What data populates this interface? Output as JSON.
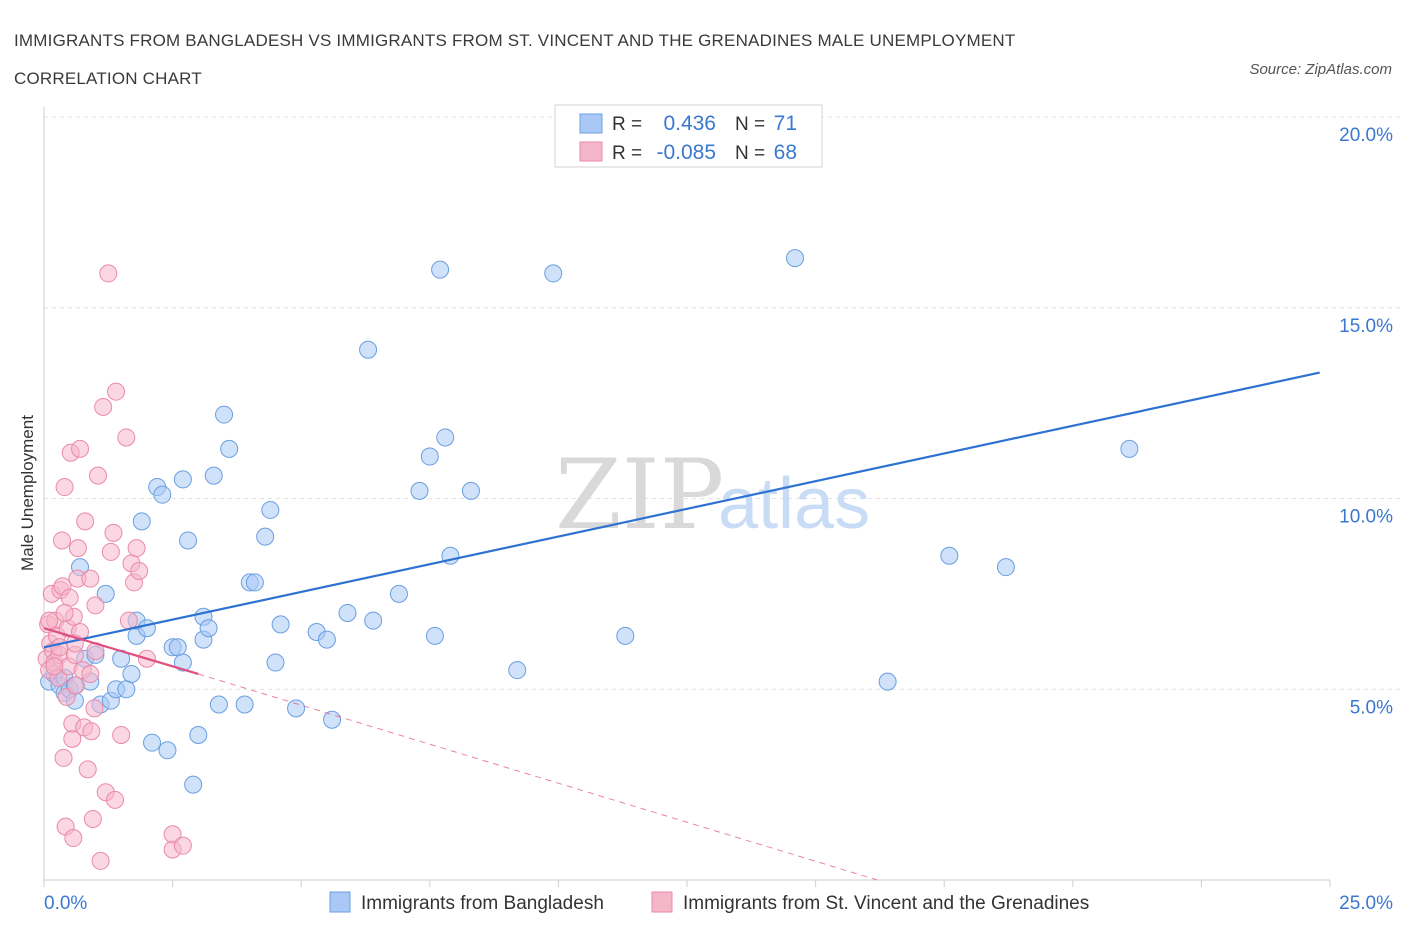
{
  "header": {
    "title_line1": "IMMIGRANTS FROM BANGLADESH VS IMMIGRANTS FROM ST. VINCENT AND THE GRENADINES MALE UNEMPLOYMENT",
    "title_line2": "CORRELATION CHART",
    "source": "Source: ZipAtlas.com"
  },
  "watermark": {
    "zip": "ZIP",
    "atlas": "atlas"
  },
  "colors": {
    "blue": "#a9c8f5",
    "blue_stroke": "#6a9fe0",
    "blue_line": "#2e72d2",
    "pink": "#f6b6ca",
    "pink_stroke": "#ea8aa9",
    "pink_line": "#e0507e",
    "axis_text": "#3a78d0"
  },
  "chart_data": {
    "type": "scatter",
    "title": "Immigrants from Bangladesh vs Immigrants from St. Vincent and the Grenadines Male Unemployment Correlation Chart",
    "xlabel": "",
    "ylabel": "Male Unemployment",
    "xlim": [
      0,
      25
    ],
    "ylim": [
      0,
      20
    ],
    "x_tick_labels": [
      "0.0%",
      "25.0%"
    ],
    "y_ticks": [
      5,
      10,
      15,
      20
    ],
    "y_tick_labels": [
      "5.0%",
      "10.0%",
      "15.0%",
      "20.0%"
    ],
    "grid": true,
    "legend": {
      "stats": [
        {
          "r_label": "R =",
          "r_value": "0.436",
          "n_label": "N =",
          "n_value": "71"
        },
        {
          "r_label": "R =",
          "r_value": "-0.085",
          "n_label": "N =",
          "n_value": "68"
        }
      ],
      "bottom": [
        "Immigrants from Bangladesh",
        "Immigrants from St. Vincent and the Grenadines"
      ]
    },
    "series": [
      {
        "name": "Immigrants from Bangladesh",
        "color": "#a9c8f5",
        "trend": {
          "x": [
            0,
            24.8
          ],
          "y": [
            6.1,
            13.3
          ]
        },
        "points": [
          [
            0.1,
            5.2
          ],
          [
            0.2,
            5.4
          ],
          [
            0.3,
            5.1
          ],
          [
            0.4,
            5.3
          ],
          [
            0.4,
            4.9
          ],
          [
            0.5,
            5.0
          ],
          [
            0.6,
            4.7
          ],
          [
            0.7,
            8.2
          ],
          [
            0.8,
            5.8
          ],
          [
            0.9,
            5.2
          ],
          [
            1.0,
            5.9
          ],
          [
            1.1,
            4.6
          ],
          [
            1.2,
            7.5
          ],
          [
            1.3,
            4.7
          ],
          [
            1.4,
            5.0
          ],
          [
            1.5,
            5.8
          ],
          [
            1.6,
            5.0
          ],
          [
            1.7,
            5.4
          ],
          [
            1.8,
            6.4
          ],
          [
            1.8,
            6.8
          ],
          [
            1.9,
            9.4
          ],
          [
            2.0,
            6.6
          ],
          [
            2.1,
            3.6
          ],
          [
            2.2,
            10.3
          ],
          [
            2.3,
            10.1
          ],
          [
            2.4,
            3.4
          ],
          [
            2.5,
            6.1
          ],
          [
            2.6,
            6.1
          ],
          [
            2.7,
            5.7
          ],
          [
            2.7,
            10.5
          ],
          [
            2.8,
            8.9
          ],
          [
            2.9,
            2.5
          ],
          [
            3.0,
            3.8
          ],
          [
            3.1,
            6.3
          ],
          [
            3.1,
            6.9
          ],
          [
            3.2,
            6.6
          ],
          [
            3.3,
            10.6
          ],
          [
            3.4,
            4.6
          ],
          [
            3.5,
            12.2
          ],
          [
            3.6,
            11.3
          ],
          [
            3.9,
            4.6
          ],
          [
            4.0,
            7.8
          ],
          [
            4.1,
            7.8
          ],
          [
            4.3,
            9.0
          ],
          [
            4.4,
            9.7
          ],
          [
            4.5,
            5.7
          ],
          [
            4.6,
            6.7
          ],
          [
            4.9,
            4.5
          ],
          [
            5.3,
            6.5
          ],
          [
            5.5,
            6.3
          ],
          [
            5.6,
            4.2
          ],
          [
            5.9,
            7.0
          ],
          [
            6.3,
            13.9
          ],
          [
            6.4,
            6.8
          ],
          [
            6.9,
            7.5
          ],
          [
            7.3,
            10.2
          ],
          [
            7.5,
            11.1
          ],
          [
            7.6,
            6.4
          ],
          [
            7.7,
            16.0
          ],
          [
            7.8,
            11.6
          ],
          [
            7.9,
            8.5
          ],
          [
            8.3,
            10.2
          ],
          [
            9.2,
            5.5
          ],
          [
            9.9,
            15.9
          ],
          [
            11.3,
            6.4
          ],
          [
            14.6,
            16.3
          ],
          [
            16.4,
            5.2
          ],
          [
            17.6,
            8.5
          ],
          [
            18.7,
            8.2
          ],
          [
            21.1,
            11.3
          ],
          [
            0.6,
            5.1
          ]
        ]
      },
      {
        "name": "Immigrants from St. Vincent and the Grenadines",
        "color": "#f6b6ca",
        "trend": {
          "x": [
            0,
            3.0
          ],
          "y": [
            6.6,
            5.4
          ]
        },
        "trend_ext": {
          "x": [
            3.0,
            16.2
          ],
          "y": [
            5.4,
            0.0
          ]
        },
        "points": [
          [
            0.05,
            5.8
          ],
          [
            0.08,
            6.7
          ],
          [
            0.1,
            5.5
          ],
          [
            0.12,
            6.2
          ],
          [
            0.15,
            7.5
          ],
          [
            0.18,
            6.0
          ],
          [
            0.2,
            5.7
          ],
          [
            0.22,
            6.8
          ],
          [
            0.25,
            6.4
          ],
          [
            0.28,
            5.3
          ],
          [
            0.3,
            5.9
          ],
          [
            0.32,
            7.6
          ],
          [
            0.35,
            8.9
          ],
          [
            0.36,
            7.7
          ],
          [
            0.38,
            3.2
          ],
          [
            0.4,
            10.3
          ],
          [
            0.42,
            1.4
          ],
          [
            0.44,
            4.8
          ],
          [
            0.46,
            6.6
          ],
          [
            0.48,
            5.6
          ],
          [
            0.5,
            7.4
          ],
          [
            0.52,
            11.2
          ],
          [
            0.55,
            3.7
          ],
          [
            0.55,
            4.1
          ],
          [
            0.57,
            1.1
          ],
          [
            0.58,
            6.9
          ],
          [
            0.6,
            5.9
          ],
          [
            0.62,
            5.1
          ],
          [
            0.65,
            7.9
          ],
          [
            0.66,
            8.7
          ],
          [
            0.7,
            11.3
          ],
          [
            0.7,
            6.5
          ],
          [
            0.75,
            5.5
          ],
          [
            0.78,
            4.0
          ],
          [
            0.8,
            9.4
          ],
          [
            0.85,
            2.9
          ],
          [
            0.9,
            7.9
          ],
          [
            0.92,
            3.9
          ],
          [
            0.95,
            1.6
          ],
          [
            0.98,
            4.5
          ],
          [
            1.0,
            7.2
          ],
          [
            1.05,
            10.6
          ],
          [
            1.1,
            0.5
          ],
          [
            1.15,
            12.4
          ],
          [
            1.2,
            2.3
          ],
          [
            1.25,
            15.9
          ],
          [
            1.3,
            8.6
          ],
          [
            1.35,
            9.1
          ],
          [
            1.38,
            2.1
          ],
          [
            1.4,
            12.8
          ],
          [
            1.5,
            3.8
          ],
          [
            1.6,
            11.6
          ],
          [
            1.65,
            6.8
          ],
          [
            1.7,
            8.3
          ],
          [
            1.75,
            7.8
          ],
          [
            1.8,
            8.7
          ],
          [
            1.85,
            8.1
          ],
          [
            2.0,
            5.8
          ],
          [
            2.5,
            0.8
          ],
          [
            2.5,
            1.2
          ],
          [
            2.7,
            0.9
          ],
          [
            0.1,
            6.8
          ],
          [
            0.2,
            5.6
          ],
          [
            0.3,
            6.1
          ],
          [
            0.4,
            7.0
          ],
          [
            0.6,
            6.2
          ],
          [
            0.9,
            5.4
          ],
          [
            1.0,
            6.0
          ]
        ]
      }
    ]
  }
}
